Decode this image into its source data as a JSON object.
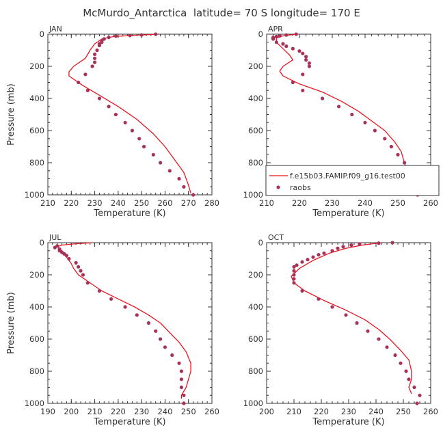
{
  "figure": {
    "title": "McMurdo_Antarctica  latitude= 70 S longitude= 170 E"
  },
  "colors": {
    "model_line": "#e8141e",
    "raobs_marker": "#a6325a",
    "axes": "#333333"
  },
  "legend": {
    "model_label": "f.e15b03.FAMIP.f09_g16.test00",
    "obs_label": "raobs",
    "placement": "lower-right of APR panel"
  },
  "chart_data": [
    {
      "type": "line",
      "panel": "JAN",
      "xlabel": "Temperature (K)",
      "ylabel": "Pressure (mb)",
      "xlim": [
        210,
        280
      ],
      "ylim": [
        1000,
        0
      ],
      "xticks": [
        210,
        220,
        230,
        240,
        250,
        260,
        270,
        280
      ],
      "yticks": [
        0,
        200,
        400,
        600,
        800,
        1000
      ],
      "series": [
        {
          "name": "f.e15b03.FAMIP.f09_g16.test00",
          "style": "line",
          "points": [
            [
              257,
              0
            ],
            [
              247,
              7
            ],
            [
              238,
              15
            ],
            [
              233,
              30
            ],
            [
              230,
              60
            ],
            [
              228,
              100
            ],
            [
              226,
              150
            ],
            [
              221,
              200
            ],
            [
              219,
              235
            ],
            [
              219,
              260
            ],
            [
              225,
              320
            ],
            [
              232,
              380
            ],
            [
              240,
              450
            ],
            [
              248,
              530
            ],
            [
              255,
              620
            ],
            [
              260,
              700
            ],
            [
              264,
              780
            ],
            [
              268,
              860
            ],
            [
              270,
              940
            ],
            [
              271,
              990
            ]
          ]
        },
        {
          "name": "raobs",
          "style": "markers",
          "points": [
            [
              256,
              0
            ],
            [
              250,
              5
            ],
            [
              245,
              8
            ],
            [
              239,
              12
            ],
            [
              236,
              20
            ],
            [
              234,
              30
            ],
            [
              233,
              40
            ],
            [
              233,
              50
            ],
            [
              232,
              60
            ],
            [
              232,
              70
            ],
            [
              231,
              100
            ],
            [
              230,
              125
            ],
            [
              230,
              150
            ],
            [
              230,
              175
            ],
            [
              229,
              200
            ],
            [
              226,
              250
            ],
            [
              223,
              300
            ],
            [
              227,
              350
            ],
            [
              232,
              400
            ],
            [
              236,
              450
            ],
            [
              239,
              500
            ],
            [
              243,
              550
            ],
            [
              246,
              600
            ],
            [
              249,
              650
            ],
            [
              251,
              700
            ],
            [
              255,
              750
            ],
            [
              258,
              800
            ],
            [
              262,
              850
            ],
            [
              266,
              900
            ],
            [
              268,
              950
            ],
            [
              272,
              1000
            ]
          ]
        }
      ]
    },
    {
      "type": "line",
      "panel": "APR",
      "xlabel": "Temperature (K)",
      "ylabel": "",
      "xlim": [
        210,
        260
      ],
      "ylim": [
        1000,
        0
      ],
      "xticks": [
        210,
        220,
        230,
        240,
        250,
        260
      ],
      "yticks": [
        0,
        200,
        400,
        600,
        800,
        1000
      ],
      "series": [
        {
          "name": "f.e15b03.FAMIP.f09_g16.test00",
          "style": "line",
          "points": [
            [
              219,
              0
            ],
            [
              215,
              10
            ],
            [
              213,
              25
            ],
            [
              213,
              50
            ],
            [
              215,
              90
            ],
            [
              217,
              130
            ],
            [
              218,
              160
            ],
            [
              215,
              200
            ],
            [
              214,
              230
            ],
            [
              215,
              260
            ],
            [
              220,
              310
            ],
            [
              227,
              360
            ],
            [
              233,
              420
            ],
            [
              238,
              480
            ],
            [
              242,
              540
            ],
            [
              246,
              600
            ],
            [
              249,
              670
            ],
            [
              251,
              730
            ],
            [
              252,
              800
            ],
            [
              253,
              860
            ],
            [
              254,
              900
            ],
            [
              253,
              930
            ],
            [
              252,
              960
            ]
          ]
        },
        {
          "name": "raobs",
          "style": "markers",
          "points": [
            [
              219,
              0
            ],
            [
              216,
              5
            ],
            [
              214,
              10
            ],
            [
              213,
              15
            ],
            [
              212,
              20
            ],
            [
              212,
              25
            ],
            [
              212,
              30
            ],
            [
              213,
              50
            ],
            [
              215,
              60
            ],
            [
              216,
              75
            ],
            [
              218,
              90
            ],
            [
              220,
              105
            ],
            [
              221,
              120
            ],
            [
              222,
              140
            ],
            [
              222,
              160
            ],
            [
              223,
              180
            ],
            [
              223,
              200
            ],
            [
              221,
              250
            ],
            [
              218,
              300
            ],
            [
              221,
              350
            ],
            [
              227,
              400
            ],
            [
              232,
              450
            ],
            [
              236,
              500
            ],
            [
              240,
              550
            ],
            [
              243,
              600
            ],
            [
              246,
              650
            ],
            [
              248,
              700
            ],
            [
              250,
              750
            ],
            [
              252,
              800
            ],
            [
              252,
              850
            ],
            [
              254,
              900
            ],
            [
              256,
              950
            ],
            [
              256,
              1000
            ]
          ]
        }
      ]
    },
    {
      "type": "line",
      "panel": "JUL",
      "xlabel": "Temperature (K)",
      "ylabel": "Pressure (mb)",
      "xlim": [
        190,
        260
      ],
      "ylim": [
        1000,
        0
      ],
      "xticks": [
        190,
        200,
        210,
        220,
        230,
        240,
        250,
        260
      ],
      "yticks": [
        0,
        200,
        400,
        600,
        800,
        1000
      ],
      "series": [
        {
          "name": "f.e15b03.FAMIP.f09_g16.test00",
          "style": "line",
          "points": [
            [
              209,
              0
            ],
            [
              201,
              8
            ],
            [
              196,
              15
            ],
            [
              194,
              25
            ],
            [
              196,
              50
            ],
            [
              198,
              90
            ],
            [
              200,
              130
            ],
            [
              201,
              160
            ],
            [
              203,
              200
            ],
            [
              207,
              240
            ],
            [
              213,
              300
            ],
            [
              220,
              350
            ],
            [
              227,
              400
            ],
            [
              233,
              450
            ],
            [
              238,
              500
            ],
            [
              242,
              560
            ],
            [
              246,
              620
            ],
            [
              249,
              680
            ],
            [
              251,
              750
            ],
            [
              251,
              800
            ],
            [
              250,
              850
            ],
            [
              249,
              900
            ],
            [
              247,
              950
            ],
            [
              247,
              970
            ]
          ]
        },
        {
          "name": "raobs",
          "style": "markers",
          "points": [
            [
              194,
              20
            ],
            [
              193,
              30
            ],
            [
              195,
              40
            ],
            [
              195,
              50
            ],
            [
              196,
              60
            ],
            [
              197,
              70
            ],
            [
              198,
              80
            ],
            [
              199,
              100
            ],
            [
              202,
              125
            ],
            [
              203,
              150
            ],
            [
              204,
              175
            ],
            [
              205,
              200
            ],
            [
              207,
              250
            ],
            [
              212,
              300
            ],
            [
              217,
              350
            ],
            [
              223,
              400
            ],
            [
              228,
              450
            ],
            [
              233,
              500
            ],
            [
              236,
              550
            ],
            [
              238,
              600
            ],
            [
              240,
              650
            ],
            [
              243,
              700
            ],
            [
              246,
              750
            ],
            [
              247,
              800
            ],
            [
              247,
              850
            ],
            [
              247,
              900
            ],
            [
              248,
              950
            ],
            [
              248,
              1000
            ]
          ]
        }
      ]
    },
    {
      "type": "line",
      "panel": "OCT",
      "xlabel": "Temperature (K)",
      "ylabel": "",
      "xlim": [
        200,
        260
      ],
      "ylim": [
        1000,
        0
      ],
      "xticks": [
        200,
        210,
        220,
        230,
        240,
        250,
        260
      ],
      "yticks": [
        0,
        200,
        400,
        600,
        800,
        1000
      ],
      "series": [
        {
          "name": "f.e15b03.FAMIP.f09_g16.test00",
          "style": "line",
          "points": [
            [
              242,
              0
            ],
            [
              235,
              15
            ],
            [
              229,
              35
            ],
            [
              223,
              65
            ],
            [
              217,
              110
            ],
            [
              212,
              160
            ],
            [
              209,
              210
            ],
            [
              210,
              250
            ],
            [
              214,
              300
            ],
            [
              221,
              360
            ],
            [
              229,
              420
            ],
            [
              236,
              480
            ],
            [
              241,
              540
            ],
            [
              245,
              600
            ],
            [
              249,
              670
            ],
            [
              252,
              730
            ],
            [
              253,
              800
            ],
            [
              253,
              850
            ],
            [
              252,
              900
            ],
            [
              253,
              940
            ]
          ]
        },
        {
          "name": "raobs",
          "style": "markers",
          "points": [
            [
              246,
              0
            ],
            [
              241,
              3
            ],
            [
              234,
              8
            ],
            [
              231,
              15
            ],
            [
              228,
              25
            ],
            [
              226,
              35
            ],
            [
              224,
              50
            ],
            [
              221,
              65
            ],
            [
              219,
              75
            ],
            [
              217,
              90
            ],
            [
              215,
              105
            ],
            [
              213,
              120
            ],
            [
              211,
              140
            ],
            [
              210,
              150
            ],
            [
              210,
              175
            ],
            [
              210,
              200
            ],
            [
              210,
              225
            ],
            [
              210,
              250
            ],
            [
              213,
              300
            ],
            [
              219,
              350
            ],
            [
              224,
              400
            ],
            [
              229,
              450
            ],
            [
              233,
              500
            ],
            [
              237,
              550
            ],
            [
              241,
              600
            ],
            [
              244,
              650
            ],
            [
              247,
              700
            ],
            [
              249,
              750
            ],
            [
              251,
              800
            ],
            [
              252,
              850
            ],
            [
              254,
              900
            ],
            [
              256,
              950
            ],
            [
              255,
              1000
            ]
          ]
        }
      ]
    }
  ]
}
